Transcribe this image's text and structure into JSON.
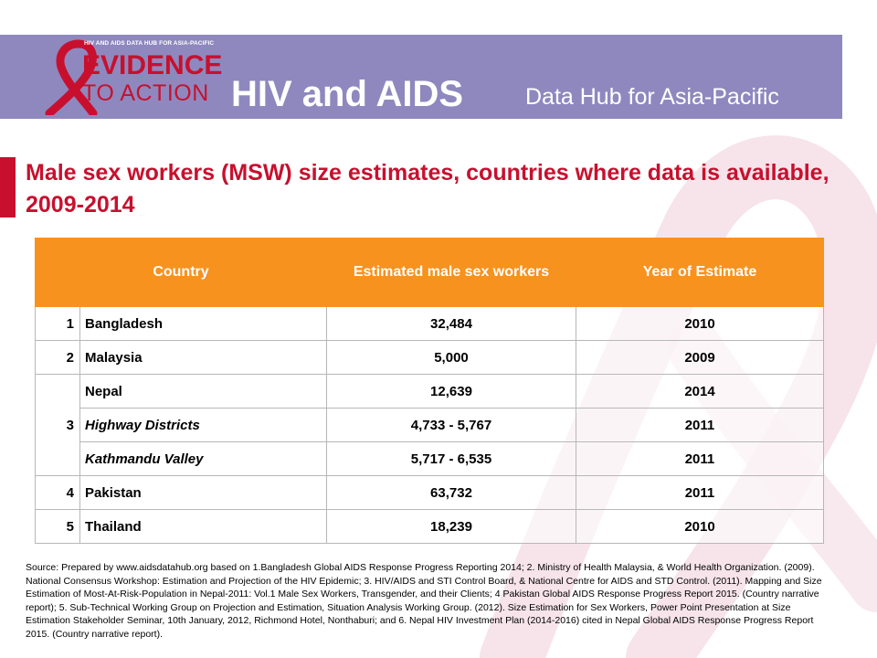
{
  "header": {
    "logo_tagline": "HIV AND AIDS DATA HUB FOR ASIA-PACIFIC",
    "logo_line1": "EVIDENCE",
    "logo_line2": "TO ACTION",
    "hub_title": "HIV and AIDS",
    "hub_subtitle": "Data Hub for Asia-Pacific",
    "band_color": "#8e88bf",
    "brand_red": "#c8102e"
  },
  "slide": {
    "title": "Male sex workers (MSW) size estimates, countries where data is available, 2009-2014"
  },
  "table": {
    "header_color": "#f7921e",
    "columns": [
      "Country",
      "Estimated male sex workers",
      "Year of Estimate"
    ],
    "rows": [
      {
        "num": "1",
        "country": "Bangladesh",
        "estimate": "32,484",
        "year": "2010"
      },
      {
        "num": "2",
        "country": "Malaysia",
        "estimate": "5,000",
        "year": "2009"
      },
      {
        "num": "3",
        "country": "Nepal",
        "estimate": "12,639",
        "year": "2014"
      },
      {
        "num": "",
        "country": "Highway Districts",
        "estimate": "4,733 - 5,767",
        "year": "2011"
      },
      {
        "num": "",
        "country": "Kathmandu Valley",
        "estimate": "5,717 - 6,535",
        "year": "2011"
      },
      {
        "num": "4",
        "country": "Pakistan",
        "estimate": "63,732",
        "year": "2011"
      },
      {
        "num": "5",
        "country": "Thailand",
        "estimate": "18,239",
        "year": "2010"
      }
    ]
  },
  "source": "Source: Prepared by www.aidsdatahub.org based on 1.Bangladesh Global AIDS Response Progress Reporting 2014; 2. Ministry of Health Malaysia, & World Health Organization. (2009). National Consensus Workshop: Estimation and Projection of the HIV Epidemic; 3. HIV/AIDS and STI Control Board, & National Centre for AIDS and STD Control. (2011). Mapping and Size Estimation of Most-At-Risk-Population in Nepal-2011: Vol.1 Male Sex Workers, Transgender, and their Clients; 4 Pakistan Global AIDS Response Progress Report 2015. (Country narrative report); 5. Sub-Technical Working Group on Projection and Estimation, Situation Analysis Working Group. (2012). Size Estimation for Sex Workers, Power Point Presentation at Size Estimation Stakeholder Seminar, 10th January, 2012, Richmond Hotel, Nonthaburi; and 6. Nepal HIV Investment Plan (2014-2016) cited in Nepal Global AIDS Response Progress Report 2015. (Country narrative report)."
}
